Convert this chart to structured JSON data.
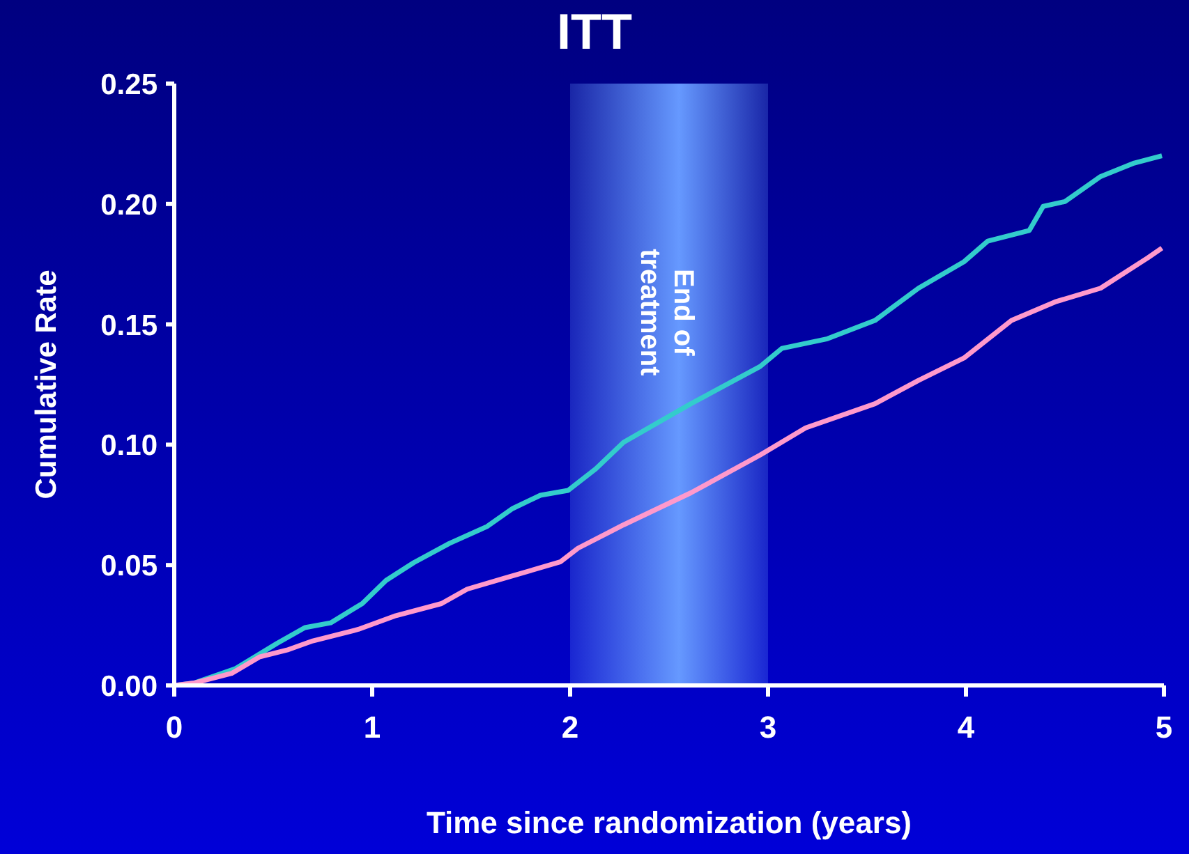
{
  "chart_data": {
    "type": "line",
    "title": "ITT",
    "xlabel": "Time since randomization (years)",
    "ylabel": "Cumulative Rate",
    "xlim": [
      0,
      5
    ],
    "xticks": [
      0,
      1,
      2,
      3,
      4,
      5
    ],
    "ylim": [
      0,
      0.25
    ],
    "yticks": [
      {
        "value": 0,
        "label": "0.00"
      },
      {
        "value": 0.05,
        "label": "0.05"
      },
      {
        "value": 0.1,
        "label": "0.10"
      },
      {
        "value": 0.15,
        "label": "0.15"
      },
      {
        "value": 0.2,
        "label": "0.20"
      },
      {
        "value": 0.25,
        "label": "0.25"
      }
    ],
    "series": [
      {
        "color": "#33cccc",
        "x": [
          0,
          0.1,
          0.31,
          0.52,
          0.66,
          0.79,
          0.95,
          1.07,
          1.21,
          1.39,
          1.58,
          1.71,
          1.85,
          1.99,
          2.13,
          2.27,
          2.61,
          2.96,
          3.07,
          3.3,
          3.54,
          3.76,
          3.99,
          4.11,
          4.32,
          4.39,
          4.5,
          4.68,
          4.85,
          4.99
        ],
        "values": [
          0,
          0.001,
          0.007,
          0.0175,
          0.024,
          0.026,
          0.034,
          0.0436,
          0.051,
          0.059,
          0.066,
          0.0735,
          0.079,
          0.081,
          0.09,
          0.101,
          0.117,
          0.1325,
          0.14,
          0.144,
          0.1516,
          0.165,
          0.176,
          0.1846,
          0.189,
          0.199,
          0.201,
          0.2114,
          0.217,
          0.22
        ]
      },
      {
        "color": "#ff99cc",
        "x": [
          0,
          0.1,
          0.29,
          0.43,
          0.57,
          0.7,
          0.93,
          1.12,
          1.35,
          1.48,
          1.67,
          1.95,
          2.04,
          2.27,
          2.61,
          2.96,
          3.19,
          3.54,
          3.76,
          3.99,
          4.23,
          4.45,
          4.68,
          4.92,
          4.99
        ],
        "values": [
          0,
          0.001,
          0.005,
          0.0118,
          0.0147,
          0.0185,
          0.0233,
          0.029,
          0.034,
          0.04,
          0.0446,
          0.0513,
          0.057,
          0.0667,
          0.08,
          0.0957,
          0.107,
          0.117,
          0.1267,
          0.136,
          0.1516,
          0.1593,
          0.165,
          0.1777,
          0.1817
        ]
      }
    ],
    "bands": [
      {
        "axis": "x",
        "from": 2,
        "to": 3,
        "label": "End of treatment",
        "color": "#6699ff"
      }
    ],
    "legend": false,
    "grid": false,
    "marker": "none",
    "line_style": "solid"
  }
}
